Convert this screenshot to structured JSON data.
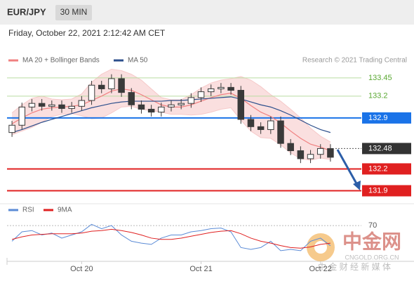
{
  "header": {
    "symbol": "EUR/JPY",
    "timeframe": "30 MIN",
    "datetime": "Friday, October 22, 2021 2:12:42 AM CET",
    "credit": "Research © 2021 Trading Central"
  },
  "watermark": {
    "name": "中金网",
    "site": "CNGOLD.ORG.CN",
    "slogan": "中 金 财 经 新 媒 体"
  },
  "chart_data": [
    {
      "type": "candlestick",
      "open": [
        132.7,
        132.8,
        133.05,
        133.1,
        133.06,
        133.08,
        133.03,
        133.06,
        133.14,
        133.35,
        133.3,
        133.44,
        133.25,
        133.08,
        133.02,
        132.98,
        133.05,
        133.08,
        133.1,
        133.18,
        133.26,
        133.3,
        133.32,
        133.28,
        132.88,
        132.78,
        132.74,
        132.86,
        132.55,
        132.45,
        132.34,
        132.4,
        132.48
      ],
      "high": [
        132.86,
        133.11,
        133.16,
        133.16,
        133.14,
        133.14,
        133.12,
        133.2,
        133.41,
        133.41,
        133.5,
        133.5,
        133.31,
        133.14,
        133.08,
        133.11,
        133.14,
        133.16,
        133.24,
        133.32,
        133.36,
        133.38,
        133.38,
        133.34,
        132.94,
        132.84,
        132.92,
        132.92,
        132.61,
        132.51,
        132.46,
        132.54,
        132.54
      ],
      "low": [
        132.64,
        132.74,
        132.99,
        133.0,
        133.0,
        132.97,
        132.97,
        133.0,
        133.08,
        133.24,
        133.24,
        133.19,
        133.02,
        132.96,
        132.92,
        132.92,
        132.99,
        133.02,
        133.04,
        133.12,
        133.2,
        133.24,
        133.22,
        132.82,
        132.72,
        132.68,
        132.68,
        132.49,
        132.39,
        132.28,
        132.28,
        132.34,
        132.3
      ],
      "close": [
        132.8,
        133.05,
        133.1,
        133.06,
        133.08,
        133.03,
        133.06,
        133.14,
        133.35,
        133.3,
        133.44,
        133.25,
        133.08,
        133.02,
        132.98,
        133.05,
        133.08,
        133.1,
        133.18,
        133.26,
        133.3,
        133.32,
        133.28,
        132.88,
        132.78,
        132.74,
        132.86,
        132.55,
        132.45,
        132.34,
        132.4,
        132.48,
        132.36
      ],
      "up_color": "#ffffff",
      "down_color": "#3a3a3a",
      "series": [
        {
          "name": "MA 20 + Bollinger Bands",
          "color": "#f08080",
          "values": [
            132.82,
            132.9,
            132.97,
            133.02,
            133.04,
            133.05,
            133.06,
            133.08,
            133.14,
            133.2,
            133.27,
            133.3,
            133.28,
            133.22,
            133.15,
            133.08,
            133.05,
            133.05,
            133.08,
            133.13,
            133.18,
            133.22,
            133.24,
            133.17,
            133.07,
            132.98,
            132.92,
            132.83,
            132.72,
            132.62,
            132.54,
            132.5,
            132.45
          ]
        },
        {
          "name": "MA 50",
          "color": "#2c4f8c",
          "values": [
            132.7,
            132.74,
            132.79,
            132.84,
            132.88,
            132.92,
            132.96,
            133.0,
            133.04,
            133.07,
            133.1,
            133.12,
            133.13,
            133.13,
            133.13,
            133.13,
            133.14,
            133.14,
            133.15,
            133.16,
            133.17,
            133.18,
            133.19,
            133.16,
            133.12,
            133.08,
            133.05,
            133.0,
            132.94,
            132.87,
            132.8,
            132.74,
            132.7
          ]
        }
      ],
      "bollinger": {
        "color": "#f6c9c9",
        "upper": [
          132.97,
          133.08,
          133.17,
          133.2,
          133.16,
          133.15,
          133.16,
          133.23,
          133.39,
          133.5,
          133.57,
          133.55,
          133.5,
          133.42,
          133.3,
          133.18,
          133.15,
          133.15,
          133.22,
          133.31,
          133.38,
          133.42,
          133.44,
          133.47,
          133.42,
          133.33,
          133.22,
          133.13,
          133.02,
          132.9,
          132.76,
          132.65,
          132.57
        ],
        "lower": [
          132.67,
          132.72,
          132.77,
          132.84,
          132.92,
          132.95,
          132.96,
          132.93,
          132.89,
          132.9,
          132.97,
          133.05,
          133.06,
          133.02,
          133.0,
          132.98,
          132.95,
          132.95,
          132.94,
          132.95,
          132.98,
          133.02,
          133.04,
          132.87,
          132.72,
          132.63,
          132.62,
          132.53,
          132.42,
          132.34,
          132.32,
          132.35,
          132.33
        ]
      },
      "levels": [
        {
          "value": 133.45,
          "color": "#5aa832",
          "line_color": "#b9dca0",
          "style": "text"
        },
        {
          "value": 133.2,
          "color": "#5aa832",
          "line_color": "#b9dca0",
          "style": "text"
        },
        {
          "value": 132.9,
          "color": "#1a73e8",
          "line_color": "#1a73e8",
          "style": "badge"
        },
        {
          "value": 132.48,
          "color": "#333333",
          "line_color": "#555555",
          "style": "badge-dotted"
        },
        {
          "value": 132.2,
          "color": "#e02020",
          "line_color": "#e02020",
          "style": "badge"
        },
        {
          "value": 131.9,
          "color": "#e02020",
          "line_color": "#e02020",
          "style": "badge"
        }
      ],
      "ylim": [
        131.77,
        133.7
      ]
    },
    {
      "type": "line",
      "categories": [
        null,
        null,
        null,
        null,
        null,
        null,
        null,
        "Oct 20",
        null,
        null,
        null,
        null,
        null,
        null,
        null,
        null,
        null,
        null,
        null,
        "Oct 21",
        null,
        null,
        null,
        null,
        null,
        null,
        null,
        null,
        null,
        null,
        null,
        "Oct 22",
        null
      ],
      "series": [
        {
          "name": "RSI",
          "color": "#5b8bd6",
          "values": [
            45,
            60,
            62,
            55,
            58,
            50,
            55,
            60,
            72,
            65,
            70,
            55,
            45,
            42,
            40,
            50,
            55,
            55,
            60,
            62,
            65,
            66,
            60,
            35,
            32,
            35,
            45,
            30,
            32,
            30,
            45,
            50,
            38
          ]
        },
        {
          "name": "9MA",
          "color": "#e02020",
          "values": [
            48,
            52,
            55,
            56,
            57,
            57,
            57,
            58,
            61,
            62,
            64,
            62,
            59,
            55,
            50,
            48,
            48,
            50,
            53,
            56,
            59,
            61,
            62,
            57,
            50,
            45,
            42,
            38,
            35,
            34,
            36,
            40,
            42
          ]
        }
      ],
      "ylim": [
        13,
        88
      ],
      "yticks": [
        70
      ]
    }
  ]
}
